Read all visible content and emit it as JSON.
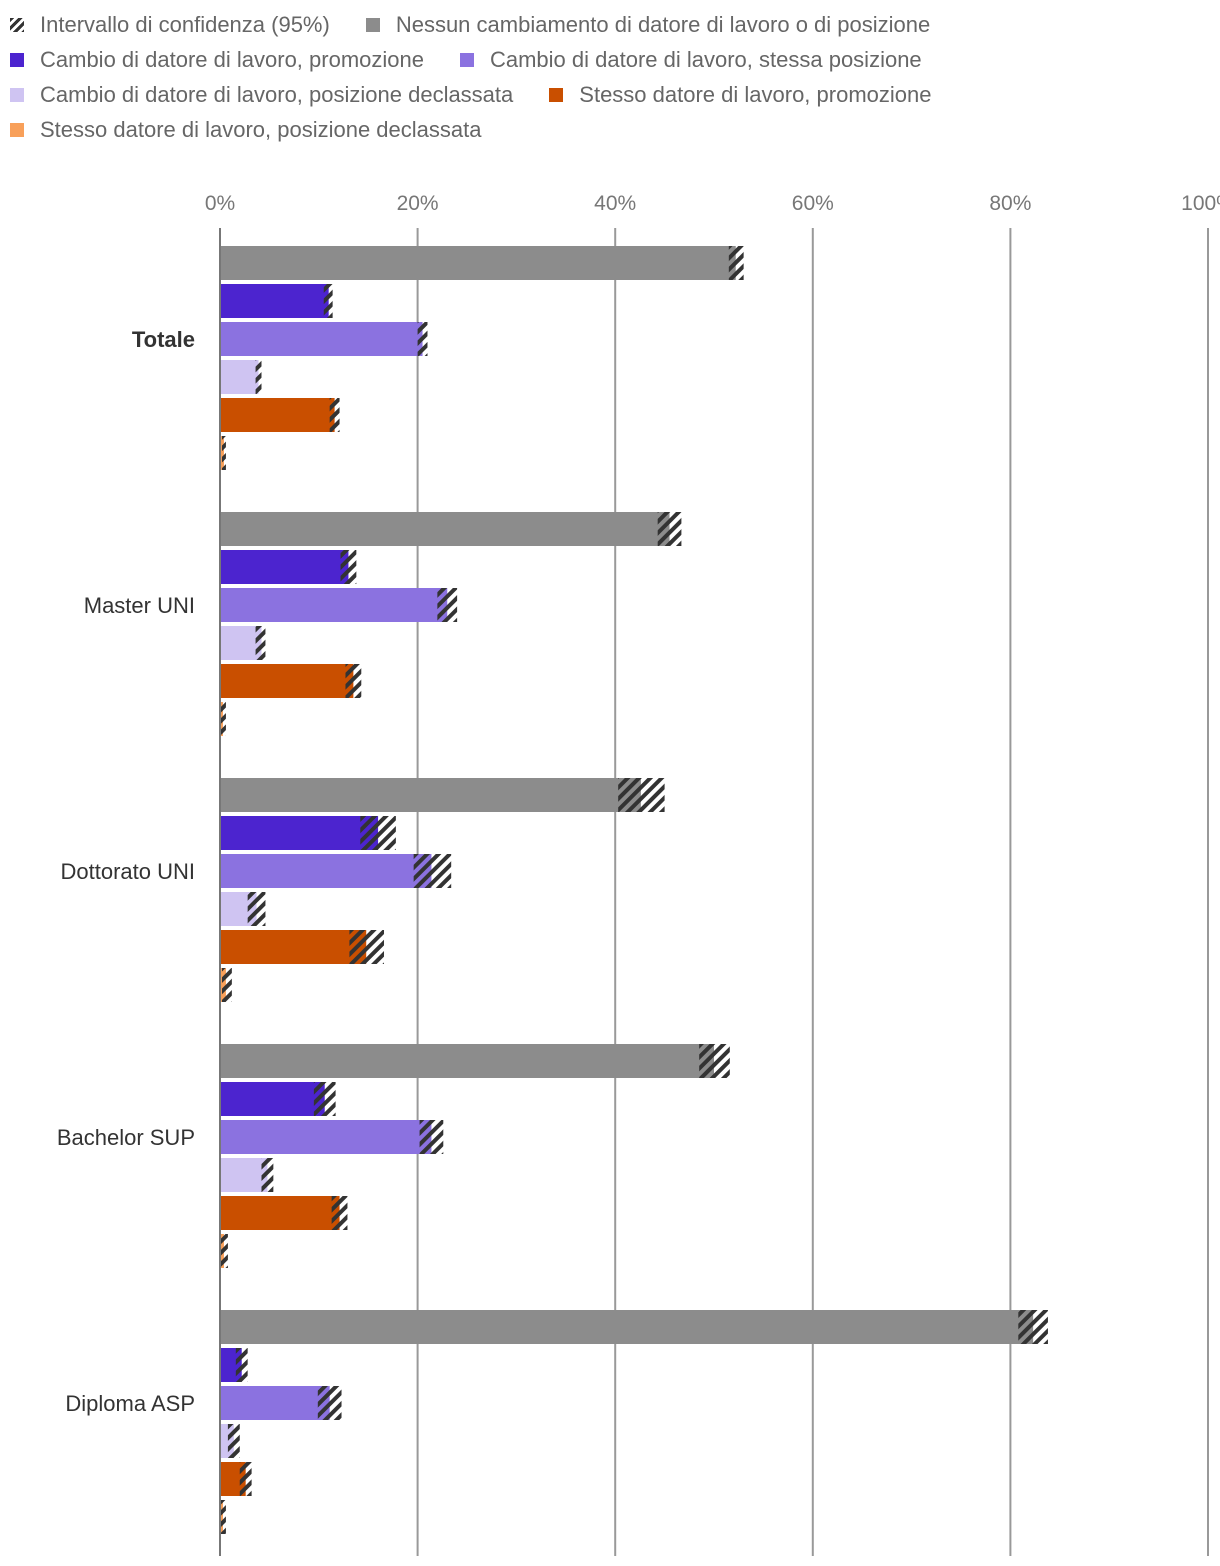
{
  "legend": [
    {
      "label": "Intervallo di confidenza (95%)",
      "type": "hatch"
    },
    {
      "label": "Nessun cambiamento di datore di lavoro o di posizione",
      "color": "#8c8c8c"
    },
    {
      "label": "Cambio di datore di lavoro, promozione",
      "color": "#4c24cf"
    },
    {
      "label": "Cambio di datore di lavoro, stessa posizione",
      "color": "#8b72e0"
    },
    {
      "label": "Cambio di datore di lavoro, posizione declassata",
      "color": "#cfc4f2"
    },
    {
      "label": "Stesso datore di lavoro, promozione",
      "color": "#c94f00"
    },
    {
      "label": "Stesso datore di lavoro, posizione declassata",
      "color": "#f8a05a"
    }
  ],
  "chart_data": {
    "type": "bar",
    "orientation": "horizontal",
    "xlim": [
      0,
      100
    ],
    "x_ticks": [
      "0%",
      "20%",
      "40%",
      "60%",
      "80%",
      "100%"
    ],
    "grid": true,
    "legend_position": "top",
    "categories": [
      "Totale",
      "Master UNI",
      "Dottorato UNI",
      "Bachelor SUP",
      "Diploma ASP"
    ],
    "series": [
      {
        "name": "Nessun cambiamento di datore di lavoro o di posizione",
        "color": "#8c8c8c",
        "values": [
          52.2,
          45.5,
          42.6,
          50.0,
          82.3
        ],
        "ci": [
          [
            51.5,
            53.0
          ],
          [
            44.3,
            46.7
          ],
          [
            40.3,
            45.0
          ],
          [
            48.5,
            51.6
          ],
          [
            80.8,
            83.8
          ]
        ]
      },
      {
        "name": "Cambio di datore di lavoro, promozione",
        "color": "#4c24cf",
        "values": [
          11.0,
          13.0,
          16.0,
          10.6,
          2.2
        ],
        "ci": [
          [
            10.5,
            11.4
          ],
          [
            12.2,
            13.8
          ],
          [
            14.2,
            17.8
          ],
          [
            9.5,
            11.7
          ],
          [
            1.6,
            2.8
          ]
        ]
      },
      {
        "name": "Cambio di datore di lavoro, stessa posizione",
        "color": "#8b72e0",
        "values": [
          20.5,
          23.0,
          21.4,
          21.4,
          11.1
        ],
        "ci": [
          [
            20.0,
            21.0
          ],
          [
            22.0,
            24.0
          ],
          [
            19.6,
            23.4
          ],
          [
            20.2,
            22.6
          ],
          [
            9.9,
            12.3
          ]
        ]
      },
      {
        "name": "Cambio di datore di lavoro, posizione declassata",
        "color": "#cfc4f2",
        "values": [
          3.9,
          4.2,
          3.7,
          4.8,
          1.4
        ],
        "ci": [
          [
            3.6,
            4.2
          ],
          [
            3.6,
            4.6
          ],
          [
            2.8,
            4.6
          ],
          [
            4.2,
            5.4
          ],
          [
            0.8,
            2.0
          ]
        ]
      },
      {
        "name": "Stesso datore di lavoro, promozione",
        "color": "#c94f00",
        "values": [
          11.6,
          13.5,
          14.8,
          12.1,
          2.6
        ],
        "ci": [
          [
            11.1,
            12.1
          ],
          [
            12.7,
            14.3
          ],
          [
            13.1,
            16.6
          ],
          [
            11.3,
            12.9
          ],
          [
            2.0,
            3.2
          ]
        ]
      },
      {
        "name": "Stesso datore di lavoro, posizione declassata",
        "color": "#f8a05a",
        "values": [
          0.4,
          0.3,
          0.6,
          0.4,
          0.3
        ],
        "ci": [
          [
            0.2,
            0.6
          ],
          [
            0.1,
            0.6
          ],
          [
            0.2,
            1.2
          ],
          [
            0.1,
            0.8
          ],
          [
            0.1,
            0.6
          ]
        ]
      }
    ]
  }
}
